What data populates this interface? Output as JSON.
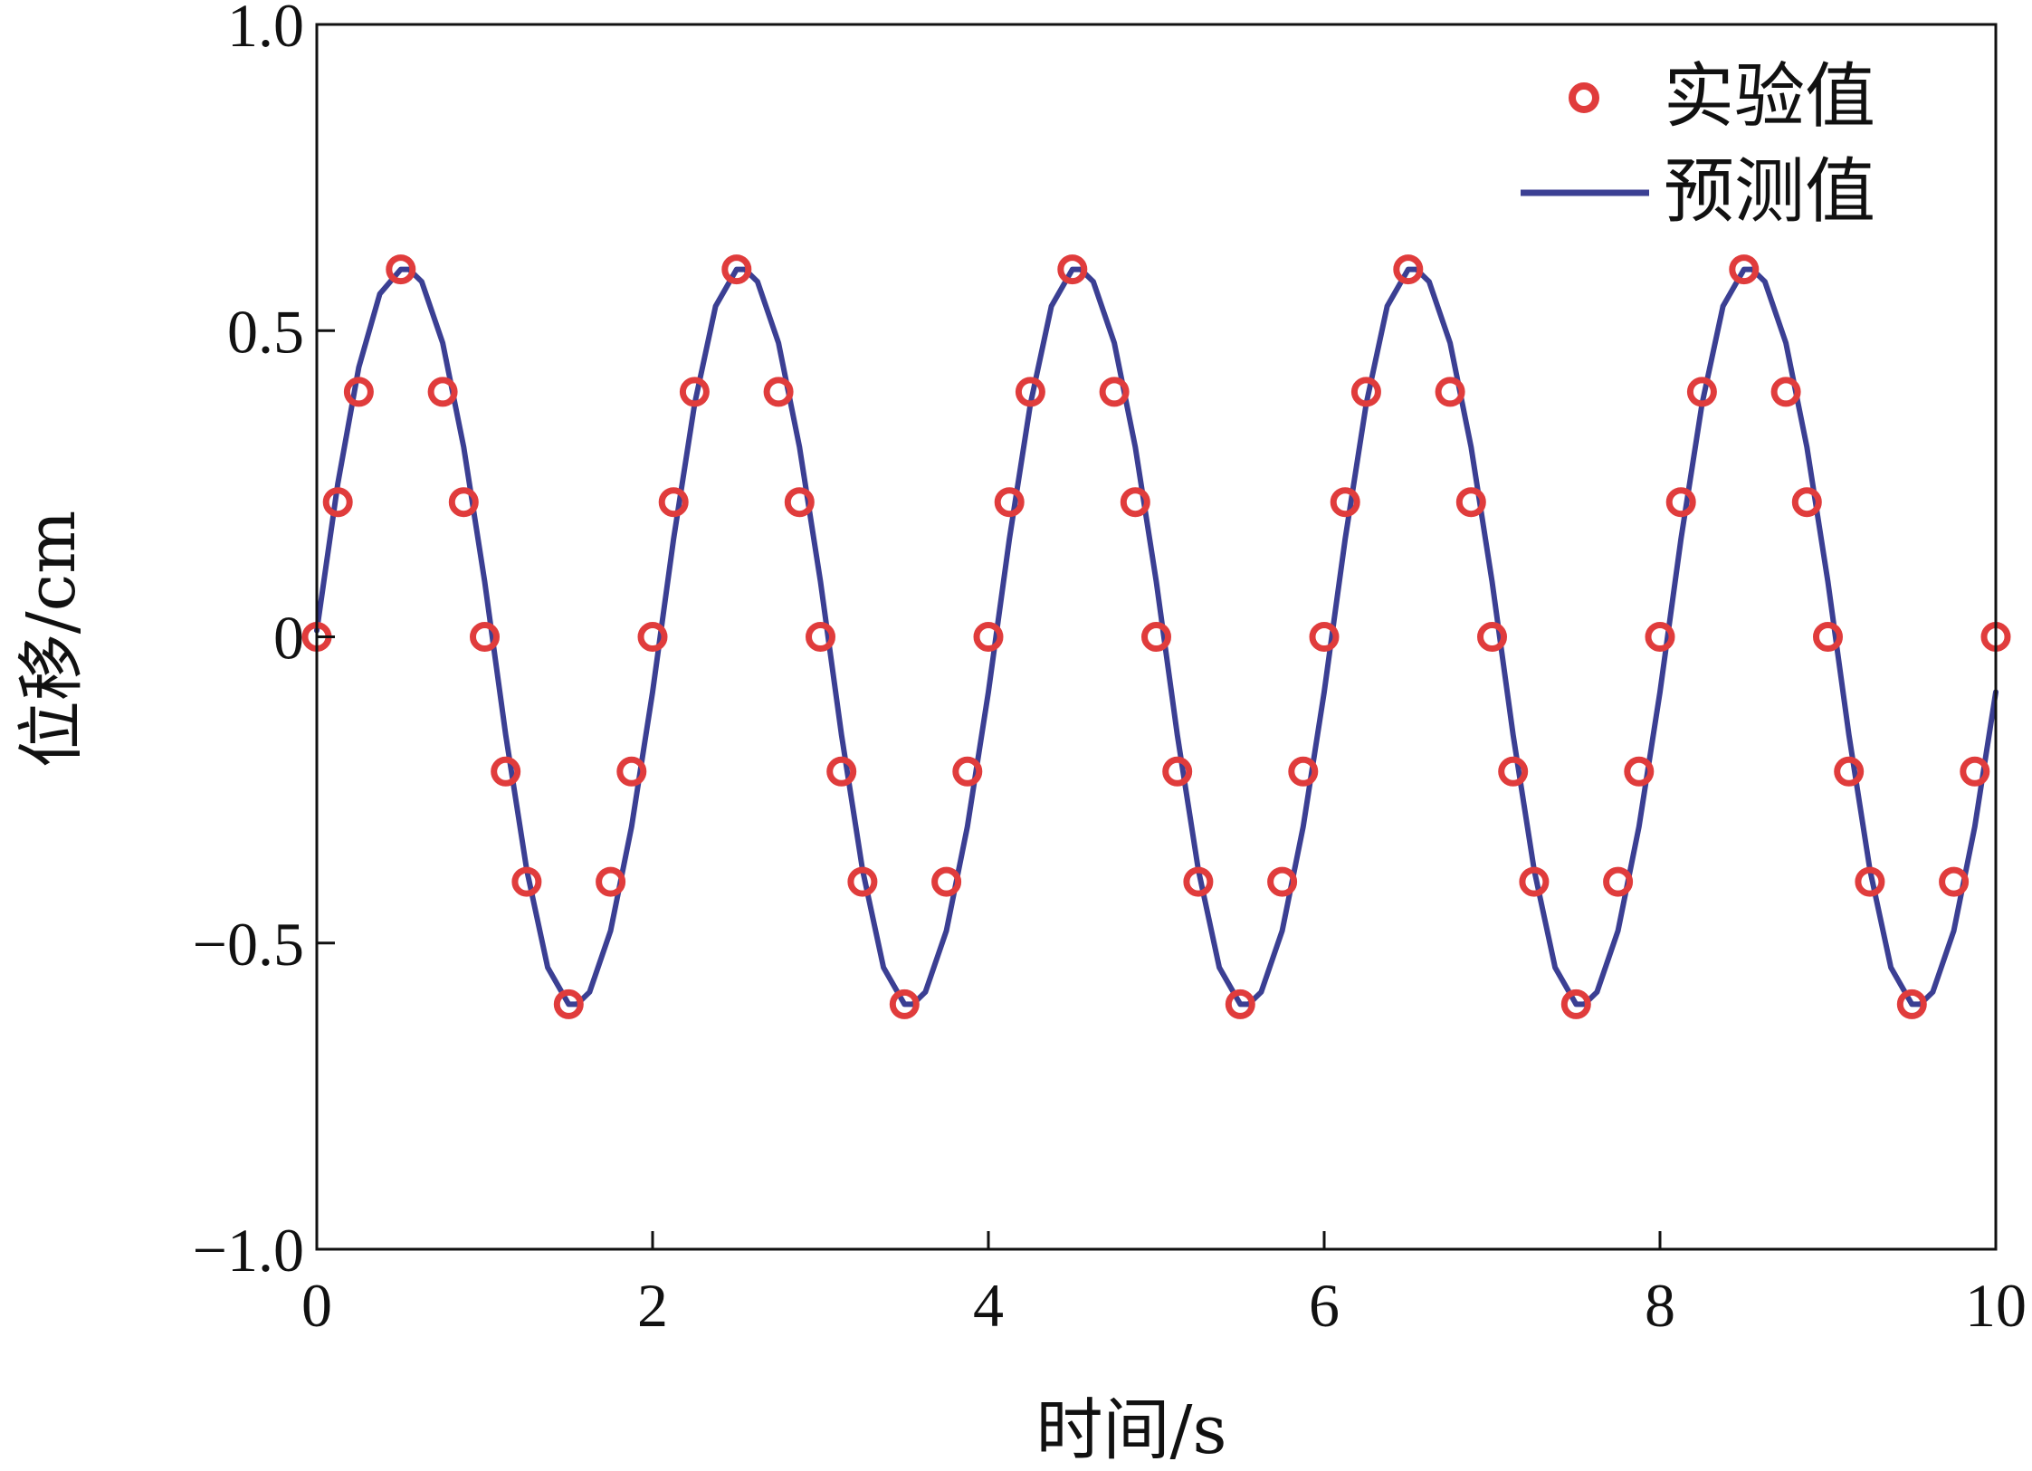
{
  "chart_data": {
    "type": "scatter",
    "title": "",
    "xlabel": "时间/s",
    "ylabel": "位移/cm",
    "xlim": [
      0,
      10
    ],
    "ylim": [
      -1.0,
      1.0
    ],
    "x_ticks": [
      0,
      2,
      4,
      6,
      8,
      10
    ],
    "y_ticks": [
      -1.0,
      -0.5,
      0,
      0.5,
      1.0
    ],
    "x_tick_labels": [
      "0",
      "2",
      "4",
      "6",
      "8",
      "10"
    ],
    "y_tick_labels": [
      "−1.0",
      "−0.5",
      "0",
      "0.5",
      "1.0"
    ],
    "grid": false,
    "legend_position": "top-right",
    "series": [
      {
        "name": "实验值",
        "kind": "scatter",
        "marker": "circle-open",
        "color": "#e03c3c",
        "x": [
          0,
          0.125,
          0.25,
          0.5,
          0.75,
          0.875,
          1.0,
          1.125,
          1.25,
          1.5,
          1.75,
          1.875,
          2.0,
          2.125,
          2.25,
          2.5,
          2.75,
          2.875,
          3.0,
          3.125,
          3.25,
          3.5,
          3.75,
          3.875,
          4.0,
          4.125,
          4.25,
          4.5,
          4.75,
          4.875,
          5.0,
          5.125,
          5.25,
          5.5,
          5.75,
          5.875,
          6.0,
          6.125,
          6.25,
          6.5,
          6.75,
          6.875,
          7.0,
          7.125,
          7.25,
          7.5,
          7.75,
          7.875,
          8.0,
          8.125,
          8.25,
          8.5,
          8.75,
          8.875,
          9.0,
          9.125,
          9.25,
          9.5,
          9.75,
          9.875,
          10.0
        ],
        "y": [
          0,
          0.22,
          0.4,
          0.6,
          0.4,
          0.22,
          0,
          -0.22,
          -0.4,
          -0.6,
          -0.4,
          -0.22,
          0,
          0.22,
          0.4,
          0.6,
          0.4,
          0.22,
          0,
          -0.22,
          -0.4,
          -0.6,
          -0.4,
          -0.22,
          0,
          0.22,
          0.4,
          0.6,
          0.4,
          0.22,
          0,
          -0.22,
          -0.4,
          -0.6,
          -0.4,
          -0.22,
          0,
          0.22,
          0.4,
          0.6,
          0.4,
          0.22,
          0,
          -0.22,
          -0.4,
          -0.6,
          -0.4,
          -0.22,
          0,
          0.22,
          0.4,
          0.6,
          0.4,
          0.22,
          0,
          -0.22,
          -0.4,
          -0.6,
          -0.4,
          -0.22,
          0
        ]
      },
      {
        "name": "预测值",
        "kind": "line",
        "color": "#3b3f93",
        "x": [
          0,
          0.125,
          0.25,
          0.375,
          0.5,
          0.55,
          0.625,
          0.75,
          0.875,
          1.0,
          1.125,
          1.25,
          1.375,
          1.5,
          1.55,
          1.625,
          1.75,
          1.875,
          2.0,
          2.125,
          2.25,
          2.375,
          2.5,
          2.55,
          2.625,
          2.75,
          2.875,
          3.0,
          3.125,
          3.25,
          3.375,
          3.5,
          3.55,
          3.625,
          3.75,
          3.875,
          4.0,
          4.125,
          4.25,
          4.375,
          4.5,
          4.55,
          4.625,
          4.75,
          4.875,
          5.0,
          5.125,
          5.25,
          5.375,
          5.5,
          5.55,
          5.625,
          5.75,
          5.875,
          6.0,
          6.125,
          6.25,
          6.375,
          6.5,
          6.55,
          6.625,
          6.75,
          6.875,
          7.0,
          7.125,
          7.25,
          7.375,
          7.5,
          7.55,
          7.625,
          7.75,
          7.875,
          8.0,
          8.125,
          8.25,
          8.375,
          8.5,
          8.55,
          8.625,
          8.75,
          8.875,
          9.0,
          9.125,
          9.25,
          9.375,
          9.5,
          9.55,
          9.625,
          9.75,
          9.875,
          10.0
        ],
        "y": [
          0.01,
          0.25,
          0.44,
          0.56,
          0.6,
          0.6,
          0.58,
          0.48,
          0.31,
          0.09,
          -0.16,
          -0.38,
          -0.54,
          -0.6,
          -0.6,
          -0.58,
          -0.48,
          -0.31,
          -0.09,
          0.16,
          0.38,
          0.54,
          0.6,
          0.6,
          0.58,
          0.48,
          0.31,
          0.09,
          -0.16,
          -0.38,
          -0.54,
          -0.6,
          -0.6,
          -0.58,
          -0.48,
          -0.31,
          -0.09,
          0.16,
          0.38,
          0.54,
          0.6,
          0.6,
          0.58,
          0.48,
          0.31,
          0.09,
          -0.16,
          -0.38,
          -0.54,
          -0.6,
          -0.6,
          -0.58,
          -0.48,
          -0.31,
          -0.09,
          0.16,
          0.38,
          0.54,
          0.6,
          0.6,
          0.58,
          0.48,
          0.31,
          0.09,
          -0.16,
          -0.38,
          -0.54,
          -0.6,
          -0.6,
          -0.58,
          -0.48,
          -0.31,
          -0.09,
          0.16,
          0.38,
          0.54,
          0.6,
          0.6,
          0.58,
          0.48,
          0.31,
          0.09,
          -0.16,
          -0.38,
          -0.54,
          -0.6,
          -0.6,
          -0.58,
          -0.48,
          -0.31,
          -0.09
        ]
      }
    ]
  },
  "colors": {
    "marker": "#e03c3c",
    "line": "#3b3f93",
    "axis": "#111111"
  }
}
